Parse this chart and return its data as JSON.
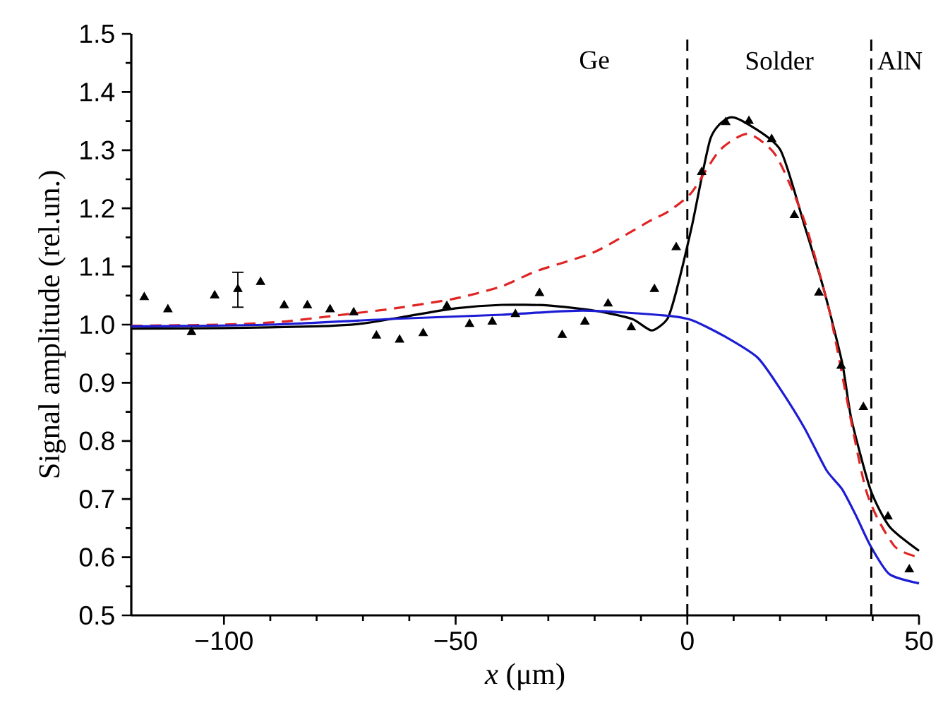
{
  "chart_data": {
    "type": "line",
    "xlabel": "*x* (μm)",
    "ylabel": "Signal amplitude (rel.un.)",
    "xlim": [
      -120,
      50
    ],
    "xticks": [
      {
        "value": -100,
        "label": "−100"
      },
      {
        "value": -50,
        "label": "−50"
      },
      0,
      50
    ],
    "ylim": [
      0.5,
      1.5
    ],
    "yticks": [
      {
        "value": 0.5,
        "label": "0.5"
      },
      {
        "value": 0.6,
        "label": "0.6"
      },
      {
        "value": 0.7,
        "label": "0.7"
      },
      {
        "value": 0.8,
        "label": "0.8"
      },
      {
        "value": 0.9,
        "label": "0.9"
      },
      {
        "value": 1.0,
        "label": "1.0"
      },
      {
        "value": 1.1,
        "label": "1.1"
      },
      {
        "value": 1.2,
        "label": "1.2"
      },
      {
        "value": 1.3,
        "label": "1.3"
      },
      {
        "value": 1.4,
        "label": "1.4"
      },
      {
        "value": 1.5,
        "label": "1.5"
      }
    ],
    "series": [
      {
        "type": "scatter",
        "marker": "triangle",
        "color": "#000000",
        "x": [
          -117.2,
          -112.1,
          -107,
          -102,
          -97,
          -92.1,
          -87,
          -82,
          -77.1,
          -72,
          -67.1,
          -62.1,
          -57,
          -51.9,
          -47,
          -42.1,
          -37.1,
          -31.9,
          -27,
          -22.1,
          -17.1,
          -12.1,
          -7.1,
          -2.4,
          3.1,
          8.3,
          13.3,
          18.2,
          23.1,
          28.4,
          33.2,
          38,
          43.3,
          47.9
        ],
        "values": [
          1.047,
          1.026,
          0.987,
          1.05,
          1.061,
          1.073,
          1.033,
          1.033,
          1.026,
          1.021,
          0.981,
          0.974,
          0.985,
          1.032,
          1.001,
          1.005,
          1.018,
          1.054,
          0.982,
          1.005,
          1.036,
          0.995,
          1.061,
          1.133,
          1.262,
          1.348,
          1.35,
          1.319,
          1.188,
          1.055,
          0.929,
          0.858,
          0.67,
          0.579
        ],
        "errors": [
          null,
          null,
          null,
          null,
          [
            1.03,
            1.09
          ],
          null,
          null,
          null,
          null,
          null,
          null,
          null,
          null,
          null,
          null,
          null,
          null,
          null,
          null,
          null,
          null,
          null,
          null,
          null,
          null,
          null,
          null,
          null,
          null,
          null,
          null,
          null,
          null,
          null
        ]
      },
      {
        "line_style": "solid",
        "color": "#000000",
        "x": [
          -120,
          -100,
          -80,
          -70,
          -60,
          -50,
          -40,
          -30,
          -20,
          -12,
          -7.7,
          -4.3,
          -2.4,
          1,
          5,
          9,
          13,
          20.1,
          25.3,
          29.3,
          33.4,
          35.4,
          39.5,
          43.6,
          50
        ],
        "values": [
          0.993,
          0.994,
          0.997,
          1.002,
          1.015,
          1.028,
          1.034,
          1.033,
          1.024,
          1.01,
          0.99,
          1.01,
          1.057,
          1.17,
          1.32,
          1.356,
          1.345,
          1.3,
          1.17,
          1.065,
          0.935,
          0.838,
          0.717,
          0.653,
          0.611
        ]
      },
      {
        "line_style": "dashed",
        "color": "#e02424",
        "x": [
          -120,
          -100,
          -87.5,
          -71.3,
          -63.1,
          -50,
          -40,
          -32.6,
          -20,
          -8.2,
          -4.2,
          0.9,
          7,
          13.1,
          19.2,
          25.3,
          30.4,
          31.9,
          38.5,
          44.6,
          50
        ],
        "values": [
          0.998,
          1.0,
          1.005,
          1.02,
          1.028,
          1.045,
          1.066,
          1.092,
          1.125,
          1.178,
          1.194,
          1.227,
          1.3,
          1.328,
          1.29,
          1.178,
          1.032,
          0.976,
          0.717,
          0.62,
          0.6
        ]
      },
      {
        "line_style": "solid",
        "color": "#1c1cd4",
        "x": [
          -120,
          -90,
          -63.1,
          -40,
          -22.5,
          -5.2,
          0.9,
          8,
          15.2,
          20,
          25.3,
          30,
          33.4,
          36.5,
          39.5,
          43.6,
          50
        ],
        "values": [
          0.997,
          1.0,
          1.01,
          1.017,
          1.024,
          1.016,
          1.008,
          0.98,
          0.943,
          0.89,
          0.822,
          0.75,
          0.717,
          0.67,
          0.62,
          0.571,
          0.555
        ]
      }
    ],
    "ref_lines": [
      {
        "axis": "x",
        "value": 0,
        "line_style": "dashed",
        "color": "#000000"
      },
      {
        "axis": "x",
        "value": 39.7,
        "line_style": "dashed",
        "color": "#000000"
      }
    ],
    "annotations": [
      "Ge",
      "Solder",
      "AlN"
    ]
  }
}
